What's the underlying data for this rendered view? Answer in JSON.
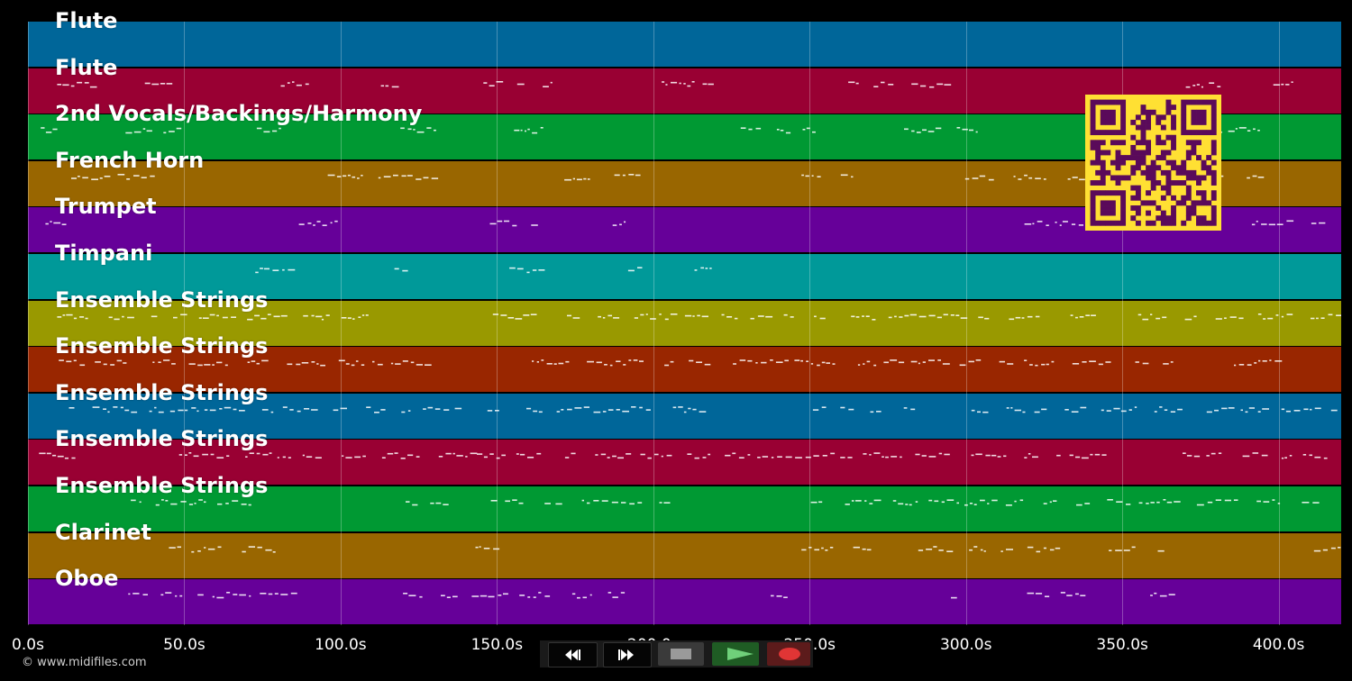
{
  "timeline": {
    "duration_seconds": 420,
    "ticks": [
      "0.0s",
      "50.0s",
      "100.0s",
      "150.0s",
      "200.0s",
      "250.0s",
      "300.0s",
      "350.0s",
      "400.0s"
    ],
    "tick_values": [
      0,
      50,
      100,
      150,
      200,
      250,
      300,
      350,
      400
    ]
  },
  "tracks": [
    {
      "name": "Flute",
      "color": "#006699",
      "density": 0.0
    },
    {
      "name": "Flute",
      "color": "#990033",
      "density": 0.5
    },
    {
      "name": "2nd Vocals/Backings/Harmony",
      "color": "#009933",
      "density": 0.5
    },
    {
      "name": "French Horn",
      "color": "#996600",
      "density": 0.5
    },
    {
      "name": "Trumpet",
      "color": "#660099",
      "density": 0.3
    },
    {
      "name": "Timpani",
      "color": "#009999",
      "density": 0.2
    },
    {
      "name": "Ensemble Strings",
      "color": "#999900",
      "density": 0.9
    },
    {
      "name": "Ensemble Strings",
      "color": "#992600",
      "density": 0.9
    },
    {
      "name": "Ensemble Strings",
      "color": "#006699",
      "density": 0.9
    },
    {
      "name": "Ensemble Strings",
      "color": "#990033",
      "density": 0.9
    },
    {
      "name": "Ensemble Strings",
      "color": "#009933",
      "density": 0.8
    },
    {
      "name": "Clarinet",
      "color": "#996600",
      "density": 0.5
    },
    {
      "name": "Oboe",
      "color": "#660099",
      "density": 0.6
    }
  ],
  "controls": {
    "rewind": "rewind-icon",
    "fast_forward": "fast-forward-icon",
    "stop": "stop-icon",
    "play": "play-icon",
    "record": "record-icon"
  },
  "copyright": "© www.midifiles.com",
  "qr_code": {
    "color": "#5a0a5a",
    "background": "#ffe033"
  }
}
